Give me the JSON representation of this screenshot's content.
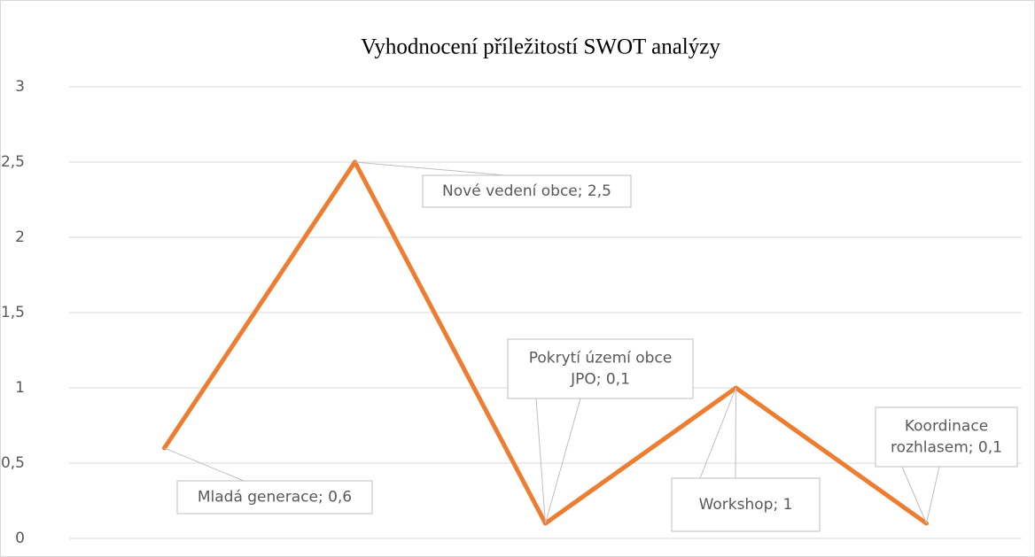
{
  "chart_data": {
    "type": "line",
    "title": "Vyhodnocení příležitostí SWOT analýzy",
    "values": [
      0.6,
      2.5,
      0.1,
      1,
      0.1
    ],
    "value_labels": [
      "Mladá generace; 0,6",
      "Nové vedení obce; 2,5",
      "Pokrytí území obce\nJPO; 0,1",
      "Workshop; 1",
      "Koordinace\nrozhlasem; 0,1"
    ],
    "color": "#ed7d31",
    "ylim": [
      0,
      3
    ],
    "yticks": [
      0,
      {
        "value": 0.5,
        "label": "0,5"
      },
      1,
      {
        "value": 1.5,
        "label": "1,5"
      },
      2,
      {
        "value": 2.5,
        "label": "2,5"
      },
      3
    ],
    "grid": true
  }
}
